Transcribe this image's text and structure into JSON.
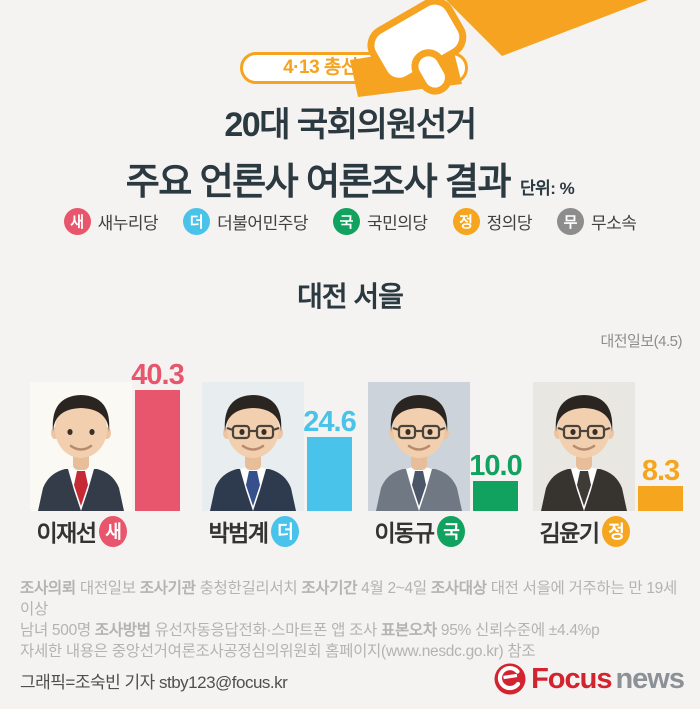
{
  "header": {
    "badge_label": "4·13 총선",
    "badge_icon": "ballot-hand-icon",
    "title_line1": "20대 국회의원선거",
    "title_line2": "주요 언론사 여론조사 결과",
    "unit_note": "단위: %"
  },
  "legend": {
    "items": [
      {
        "initial": "새",
        "label": "새누리당",
        "color": "#e8566d"
      },
      {
        "initial": "더",
        "label": "더불어민주당",
        "color": "#49c3e9"
      },
      {
        "initial": "국",
        "label": "국민의당",
        "color": "#10a25e"
      },
      {
        "initial": "정",
        "label": "정의당",
        "color": "#f5a51e"
      },
      {
        "initial": "무",
        "label": "무소속",
        "color": "#8d8d8d"
      }
    ]
  },
  "region": {
    "title": "대전 서을",
    "source": "대전일보(4.5)"
  },
  "chart_data": {
    "type": "bar",
    "title": "대전 서을",
    "categories": [
      "이재선",
      "박범계",
      "이동규",
      "김윤기"
    ],
    "values": [
      40.3,
      24.6,
      10.0,
      8.3
    ],
    "value_labels": [
      "40.3",
      "24.6",
      "10.0",
      "8.3"
    ],
    "parties": [
      "새누리당",
      "더불어민주당",
      "국민의당",
      "정의당"
    ],
    "bar_colors": [
      "#e8566d",
      "#49c3e9",
      "#10a25e",
      "#f5a51e"
    ],
    "unit": "%",
    "ylim": [
      0,
      45
    ],
    "source": "대전일보(4.5)",
    "legend_position": "top",
    "grid": false
  },
  "candidates": [
    {
      "name": "이재선",
      "party_initial": "새",
      "party": "새누리당",
      "value": "40.3",
      "color": "#e8566d",
      "photo": {
        "bg": "#faf9f4",
        "suit": "#343b49",
        "tie": "#c62b35",
        "glasses": false
      }
    },
    {
      "name": "박범계",
      "party_initial": "더",
      "party": "더불어민주당",
      "value": "24.6",
      "color": "#49c3e9",
      "photo": {
        "bg": "#e8eef0",
        "suit": "#2e3a4d",
        "tie": "#35508c",
        "glasses": true
      }
    },
    {
      "name": "이동규",
      "party_initial": "국",
      "party": "국민의당",
      "value": "10.0",
      "color": "#10a25e",
      "photo": {
        "bg": "#ccd3da",
        "suit": "#707884",
        "tie": "#4b5668",
        "glasses": true
      }
    },
    {
      "name": "김윤기",
      "party_initial": "정",
      "party": "정의당",
      "value": "8.3",
      "color": "#f5a51e",
      "photo": {
        "bg": "#e9e7e2",
        "suit": "#37342f",
        "tie": "#3e3b36",
        "glasses": true
      }
    }
  ],
  "footer": {
    "lines": [
      [
        {
          "text": "조사의뢰 ",
          "bold": true
        },
        {
          "text": "대전일보 "
        },
        {
          "text": "조사기관 ",
          "bold": true
        },
        {
          "text": "충청한길리서치 "
        },
        {
          "text": "조사기간 ",
          "bold": true
        },
        {
          "text": "4월 2~4일 "
        },
        {
          "text": "조사대상 ",
          "bold": true
        },
        {
          "text": "대전 서을에 거주하는 만 19세 이상"
        }
      ],
      [
        {
          "text": "남녀 500명 "
        },
        {
          "text": "조사방법 ",
          "bold": true
        },
        {
          "text": "유선자동응답전화·스마트폰 앱 조사  "
        },
        {
          "text": "표본오차 ",
          "bold": true
        },
        {
          "text": "95% 신뢰수준에 ±4.4%p"
        }
      ],
      [
        {
          "text": "자세한 내용은 중앙선거여론조사공정심의위원회 홈페이지(www.nesdc.go.kr) 참조"
        }
      ]
    ]
  },
  "credit": "그래픽=조숙빈 기자 stby123@focus.kr",
  "logo": {
    "icon": "focus-news-swirl-icon",
    "brand": "Focus",
    "suffix": "news"
  },
  "colors": {
    "background": "#f4f3f1",
    "accent_orange": "#f5a320",
    "title_dark": "#2b3940",
    "footer_gray": "#b5b3b0"
  }
}
